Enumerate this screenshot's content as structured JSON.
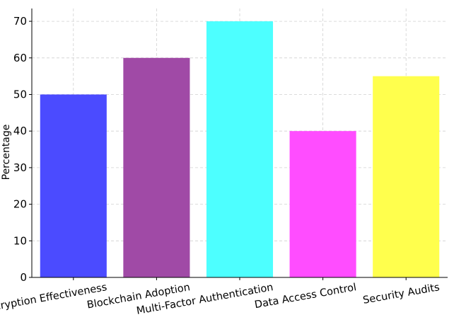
{
  "chart_data": {
    "type": "bar",
    "title": "",
    "xlabel": "",
    "ylabel": "Percentage",
    "categories": [
      "Encryption Effectiveness",
      "Blockchain Adoption",
      "Multi-Factor Authentication",
      "Data Access Control",
      "Security Audits"
    ],
    "values": [
      50,
      60,
      70,
      40,
      55
    ],
    "colors": [
      "#4b4bff",
      "#a04aa6",
      "#4dffff",
      "#ff4dff",
      "#ffff4d"
    ],
    "ylim": [
      0,
      73.5
    ],
    "yticks": [
      0,
      10,
      20,
      30,
      40,
      50,
      60,
      70
    ],
    "grid": true,
    "legend": "none"
  }
}
